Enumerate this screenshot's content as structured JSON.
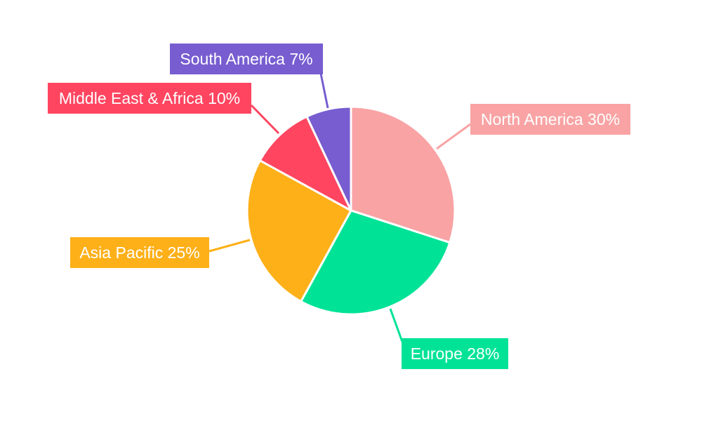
{
  "chart_data": {
    "type": "pie",
    "title": "",
    "categories": [
      "North America",
      "Europe",
      "Asia Pacific",
      "Middle East & Africa",
      "South America"
    ],
    "values": [
      30,
      28,
      25,
      10,
      7
    ],
    "labels": [
      "North America 30%",
      "Europe 28%",
      "Asia Pacific 25%",
      "Middle East & Africa 10%",
      "South America 7%"
    ],
    "colors": [
      "#F9A3A4",
      "#00E396",
      "#FEB019",
      "#FF4560",
      "#775DD0"
    ],
    "start_angle": "top",
    "direction": "clockwise",
    "legend": "none"
  }
}
